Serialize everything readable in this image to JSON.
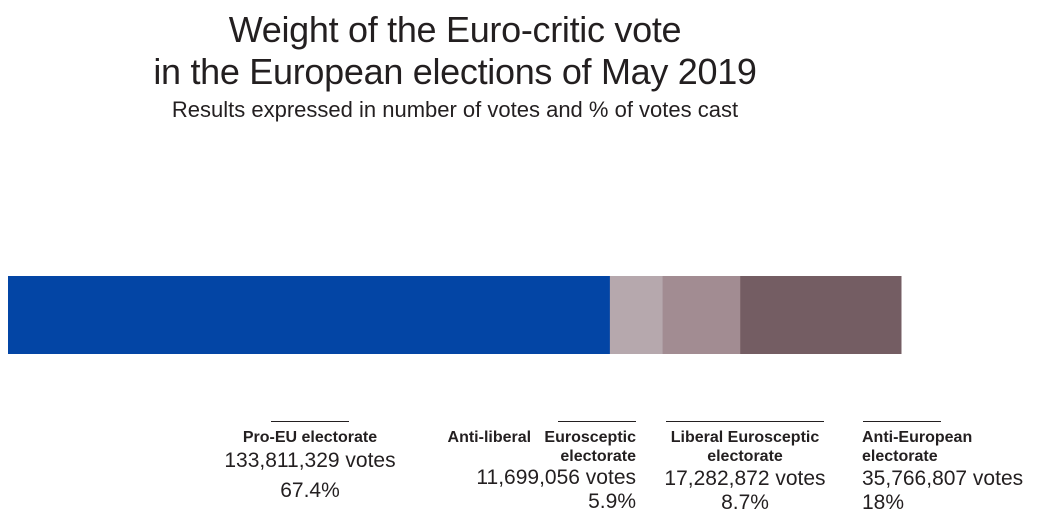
{
  "chart_data": {
    "type": "bar",
    "orientation": "horizontal-stacked",
    "title": "Weight of the Euro-critic vote in the European elections of May 2019",
    "title_lines": [
      "Weight of the Euro-critic vote",
      "in the European elections of May 2019"
    ],
    "subtitle": "Results expressed in number of votes and % of votes cast",
    "categories": [
      "Pro-EU electorate",
      "Anti-liberal Eurosceptic electorate",
      "Liberal Eurosceptic electorate",
      "Anti-European electorate"
    ],
    "series": [
      {
        "name": "Share of votes cast",
        "values": [
          67.4,
          5.9,
          8.7,
          18
        ],
        "votes": [
          133811329,
          11699056,
          17282872,
          35766807
        ],
        "colors": [
          "#0345a5",
          "#b6a8ad",
          "#a28c92",
          "#745d63"
        ]
      }
    ],
    "segments": [
      {
        "name_lines": [
          "Pro-EU electorate"
        ],
        "votes_label": "133,811,329 votes",
        "pct_label": "67.4%"
      },
      {
        "name_lines": [
          "Anti-liberal   Eurosceptic",
          "electorate"
        ],
        "votes_label": "11,699,056 votes",
        "pct_label": "5.9%"
      },
      {
        "name_lines": [
          "Liberal Eurosceptic",
          "electorate"
        ],
        "votes_label": "17,282,872 votes",
        "pct_label": "8.7%"
      },
      {
        "name_lines": [
          "Anti-European",
          "electorate"
        ],
        "votes_label": "35,766,807 votes",
        "pct_label": "18%"
      }
    ],
    "xlabel": "",
    "ylabel": "",
    "xlim": [
      0,
      100
    ],
    "grid": false,
    "legend": "none"
  }
}
